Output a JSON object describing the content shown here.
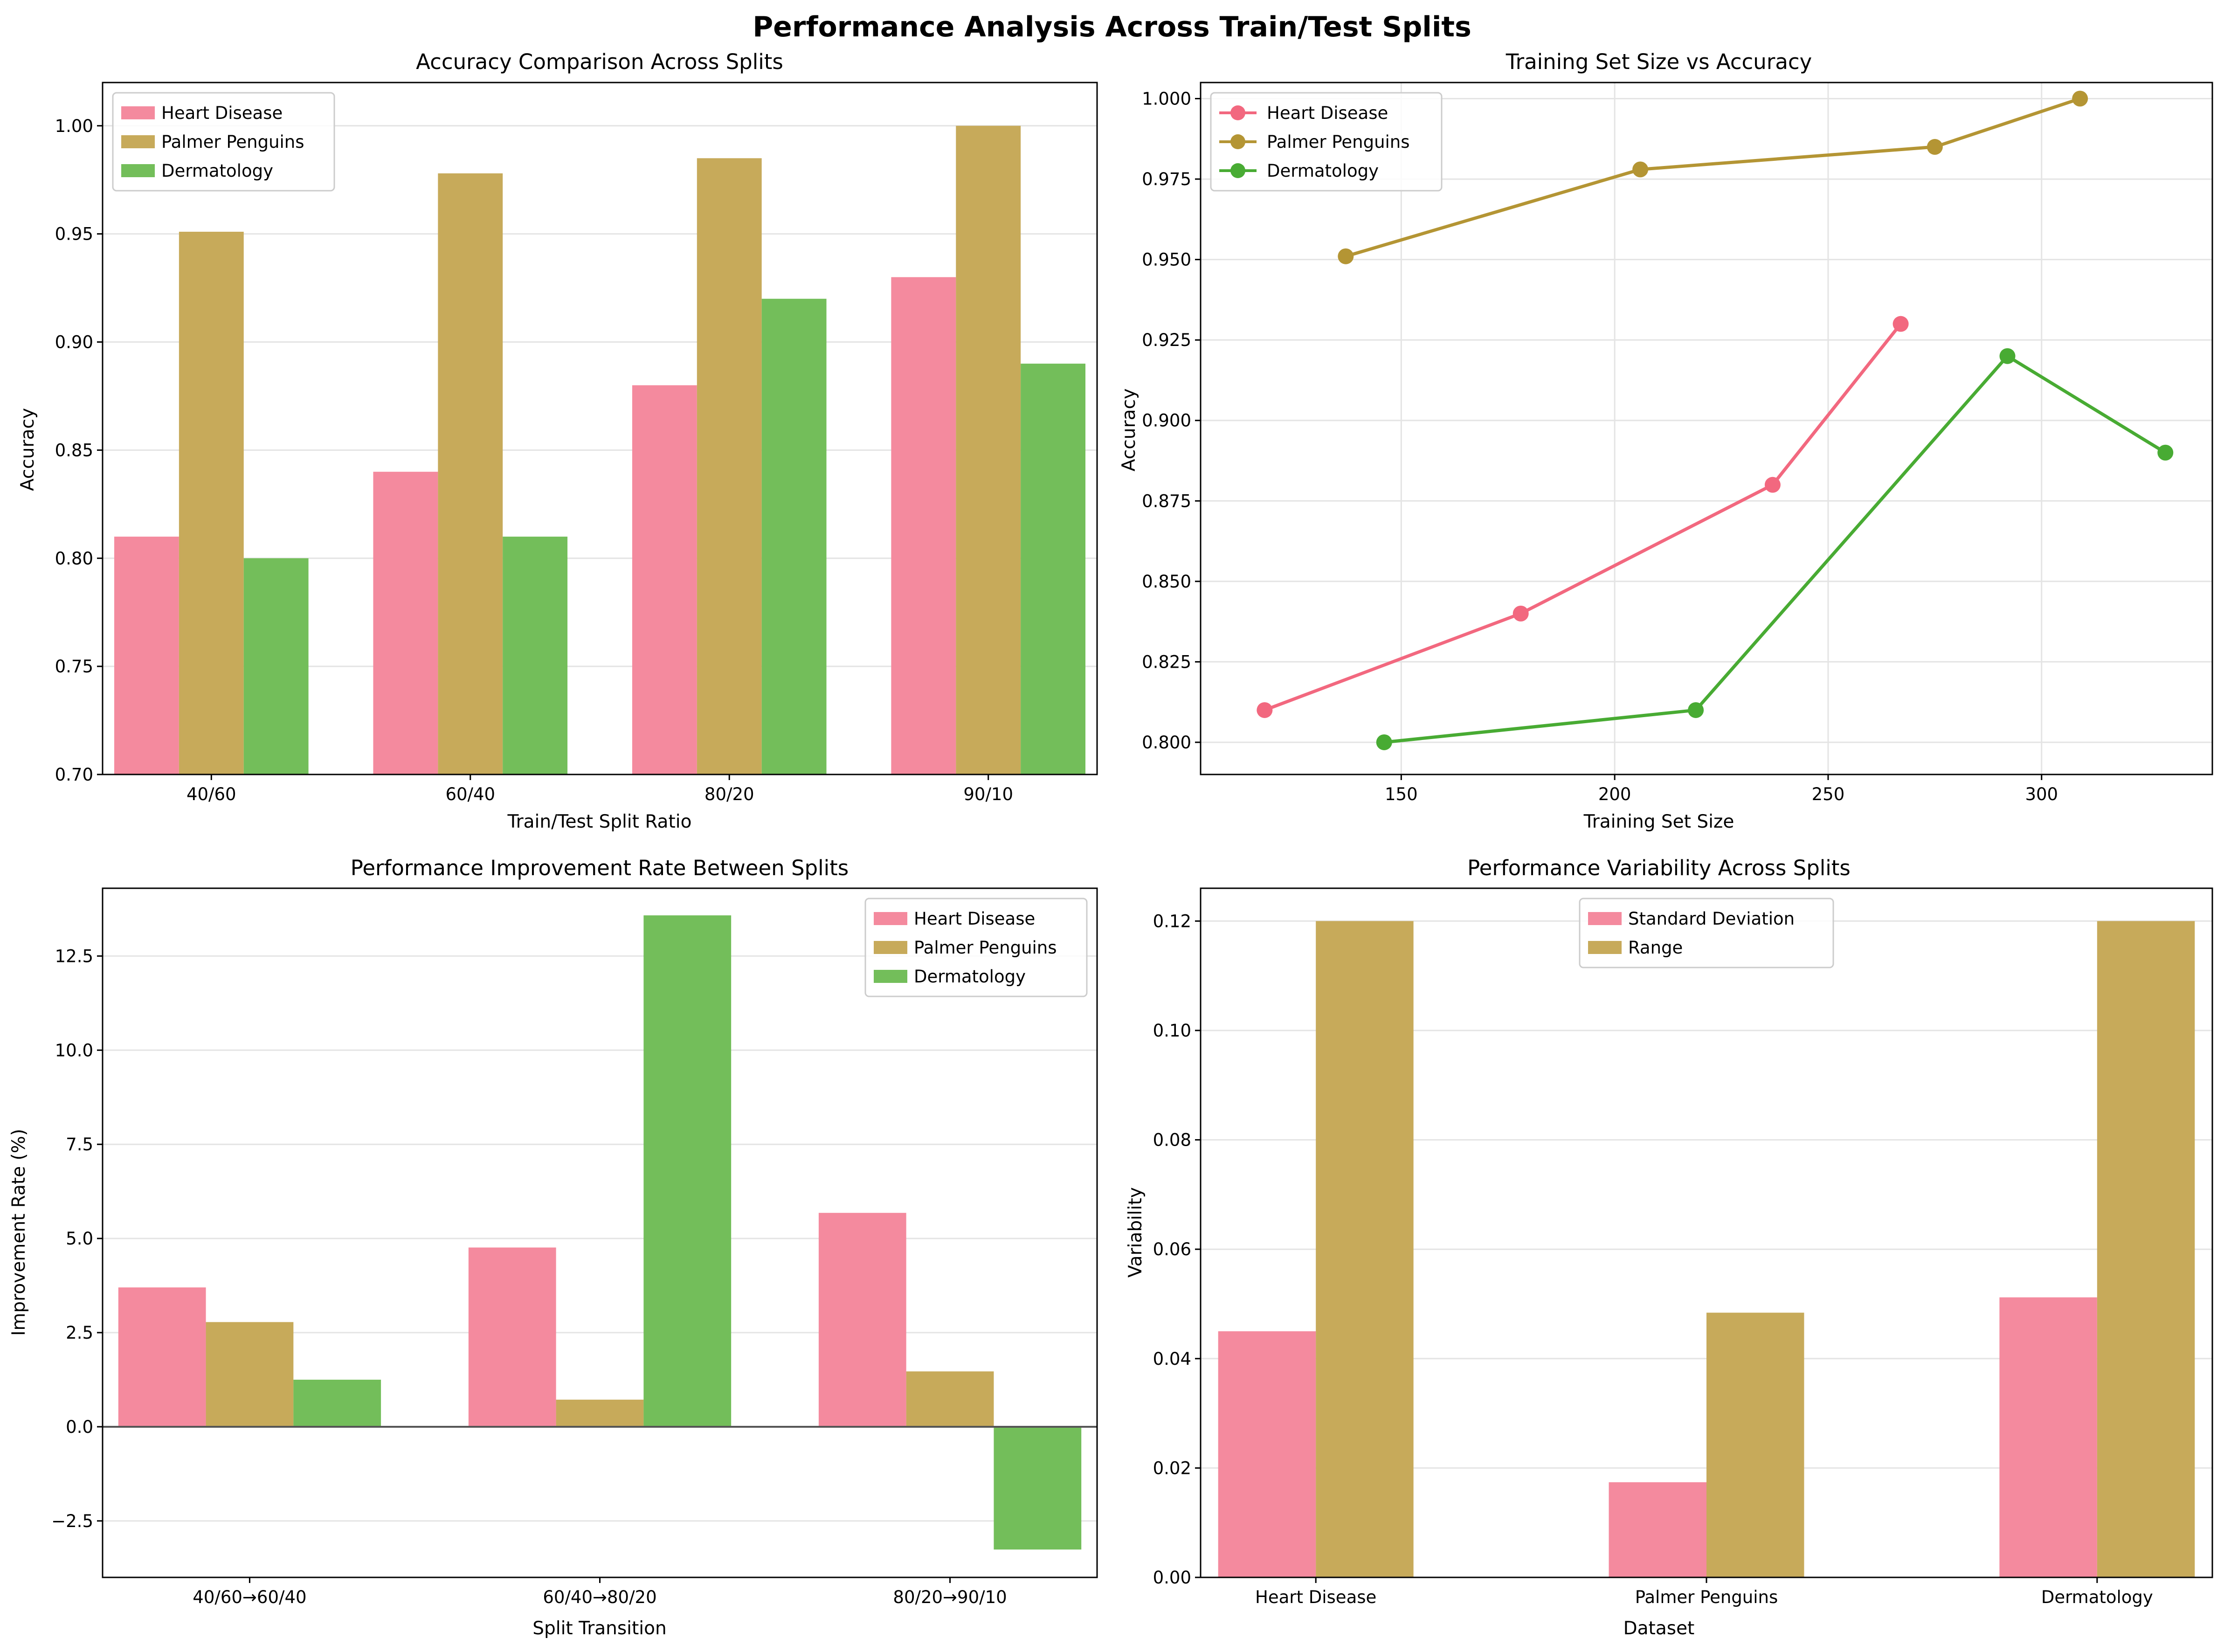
{
  "figure": {
    "title": "Performance Analysis Across Train/Test Splits"
  },
  "colors": {
    "heart": "#f48a9e",
    "penguins": "#c7aa5a",
    "derm": "#73be5a",
    "heart_line": "#f2687f",
    "penguins_line": "#b49534",
    "derm_line": "#48ab33"
  },
  "chart_data": [
    {
      "type": "bar",
      "title": "Accuracy Comparison Across Splits",
      "xlabel": "Train/Test Split Ratio",
      "ylabel": "Accuracy",
      "categories": [
        "40/60",
        "60/40",
        "80/20",
        "90/10"
      ],
      "ylim": [
        0.7,
        1.02
      ],
      "yticks": [
        0.7,
        0.75,
        0.8,
        0.85,
        0.9,
        0.95,
        1.0
      ],
      "ytick_labels": [
        "0.70",
        "0.75",
        "0.80",
        "0.85",
        "0.90",
        "0.95",
        "1.00"
      ],
      "grid": "y",
      "legend": "top-left",
      "series": [
        {
          "name": "Heart Disease",
          "color": "#f48a9e",
          "values": [
            0.81,
            0.84,
            0.88,
            0.93
          ]
        },
        {
          "name": "Palmer Penguins",
          "color": "#c7aa5a",
          "values": [
            0.951,
            0.978,
            0.985,
            1.0
          ]
        },
        {
          "name": "Dermatology",
          "color": "#73be5a",
          "values": [
            0.8,
            0.81,
            0.92,
            0.89
          ]
        }
      ]
    },
    {
      "type": "line",
      "title": "Training Set Size vs Accuracy",
      "xlabel": "Training Set Size",
      "ylabel": "Accuracy",
      "xlim": [
        103,
        340
      ],
      "ylim": [
        0.79,
        1.005
      ],
      "xticks": [
        150,
        200,
        250,
        300
      ],
      "xtick_labels": [
        "150",
        "200",
        "250",
        "300"
      ],
      "yticks": [
        0.8,
        0.825,
        0.85,
        0.875,
        0.9,
        0.925,
        0.95,
        0.975,
        1.0
      ],
      "ytick_labels": [
        "0.800",
        "0.825",
        "0.850",
        "0.875",
        "0.900",
        "0.925",
        "0.950",
        "0.975",
        "1.000"
      ],
      "grid": "both",
      "legend": "top-left",
      "series": [
        {
          "name": "Heart Disease",
          "color": "#f2687f",
          "x": [
            118,
            178,
            237,
            267
          ],
          "y": [
            0.81,
            0.84,
            0.88,
            0.93
          ]
        },
        {
          "name": "Palmer Penguins",
          "color": "#b49534",
          "x": [
            137,
            206,
            275,
            309
          ],
          "y": [
            0.951,
            0.978,
            0.985,
            1.0
          ]
        },
        {
          "name": "Dermatology",
          "color": "#48ab33",
          "x": [
            146,
            219,
            292,
            329
          ],
          "y": [
            0.8,
            0.81,
            0.92,
            0.89
          ]
        }
      ]
    },
    {
      "type": "bar",
      "title": "Performance Improvement Rate Between Splits",
      "xlabel": "Split Transition",
      "ylabel": "Improvement Rate (%)",
      "categories": [
        "40/60→60/40",
        "60/40→80/20",
        "80/20→90/10"
      ],
      "ylim": [
        -4.0,
        14.3
      ],
      "yticks": [
        -2.5,
        0.0,
        2.5,
        5.0,
        7.5,
        10.0,
        12.5
      ],
      "ytick_labels": [
        "−2.5",
        "0.0",
        "2.5",
        "5.0",
        "7.5",
        "10.0",
        "12.5"
      ],
      "grid": "y",
      "legend": "top-right",
      "zero_line": true,
      "series": [
        {
          "name": "Heart Disease",
          "color": "#f48a9e",
          "values": [
            3.7,
            4.76,
            5.68
          ]
        },
        {
          "name": "Palmer Penguins",
          "color": "#c7aa5a",
          "values": [
            2.78,
            0.72,
            1.47
          ]
        },
        {
          "name": "Dermatology",
          "color": "#73be5a",
          "values": [
            1.25,
            13.58,
            -3.26
          ]
        }
      ]
    },
    {
      "type": "bar",
      "title": "Performance Variability Across Splits",
      "xlabel": "Dataset",
      "ylabel": "Variability",
      "categories": [
        "Heart Disease",
        "Palmer Penguins",
        "Dermatology"
      ],
      "ylim": [
        0.0,
        0.126
      ],
      "yticks": [
        0.0,
        0.02,
        0.04,
        0.06,
        0.08,
        0.1,
        0.12
      ],
      "ytick_labels": [
        "0.00",
        "0.02",
        "0.04",
        "0.06",
        "0.08",
        "0.10",
        "0.12"
      ],
      "grid": "y",
      "legend": "top-center",
      "series": [
        {
          "name": "Standard Deviation",
          "color": "#f48a9e",
          "values": [
            0.045,
            0.0174,
            0.0512
          ]
        },
        {
          "name": "Range",
          "color": "#c7aa5a",
          "values": [
            0.12,
            0.0484,
            0.12
          ]
        }
      ]
    }
  ]
}
